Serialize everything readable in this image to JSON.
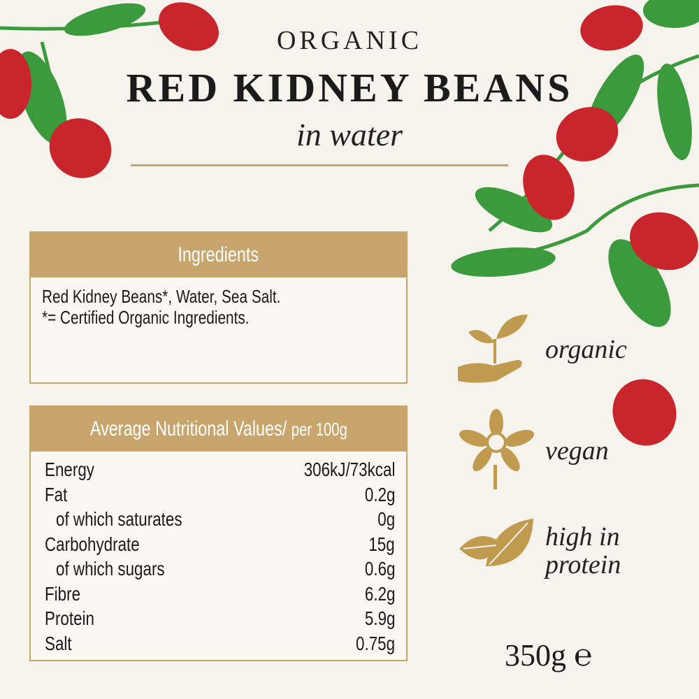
{
  "header": {
    "eyebrow": "ORGANIC",
    "title": "RED KIDNEY BEANS",
    "subtitle": "in water"
  },
  "ingredients": {
    "heading": "Ingredients",
    "lines": [
      "Red Kidney Beans*, Water, Sea Salt.",
      "*= Certified Organic Ingredients."
    ]
  },
  "nutrition": {
    "heading": "Average Nutritional Values/",
    "heading_unit": "per 100g",
    "rows": [
      {
        "label": "Energy",
        "value": "306kJ/73kcal"
      },
      {
        "label": "Fat",
        "value": "0.2g"
      },
      {
        "label": "of which saturates",
        "value": "0g"
      },
      {
        "label": "Carbohydrate",
        "value": "15g"
      },
      {
        "label": "of which sugars",
        "value": "0.6g"
      },
      {
        "label": "Fibre",
        "value": "6.2g"
      },
      {
        "label": "Protein",
        "value": "5.9g"
      },
      {
        "label": "Salt",
        "value": "0.75g"
      }
    ]
  },
  "claims": [
    {
      "icon": "sprout-in-hand-icon",
      "label": "organic"
    },
    {
      "icon": "flower-icon",
      "label": "vegan"
    },
    {
      "icon": "leaf-icon",
      "label_line1": "high in",
      "label_line2": "protein"
    }
  ],
  "net_weight": "350g ℮",
  "colors": {
    "gold": "#c7a56d",
    "bean_red": "#c8262c",
    "leaf_green": "#3a9a3c",
    "background": "#f6f3ec"
  }
}
